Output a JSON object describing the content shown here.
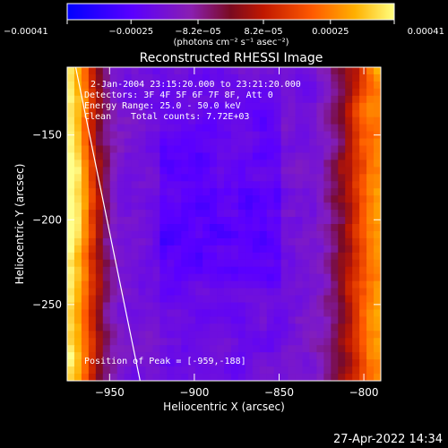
{
  "chart_data": {
    "type": "heatmap",
    "title": "Reconstructed RHESSI Image",
    "xlabel": "Heliocentric X (arcsec)",
    "ylabel": "Heliocentric Y (arcsec)",
    "xlim": [
      -975,
      -790
    ],
    "ylim": [
      -295,
      -110
    ],
    "x_ticks": [
      {
        "value": -950,
        "label": "−950"
      },
      {
        "value": -900,
        "label": "−900"
      },
      {
        "value": -850,
        "label": "−850"
      },
      {
        "value": -800,
        "label": "−800"
      }
    ],
    "y_ticks": [
      {
        "value": -150,
        "label": "−150"
      },
      {
        "value": -200,
        "label": "−200"
      },
      {
        "value": -250,
        "label": "−250"
      }
    ],
    "colorbar": {
      "min": -0.00041,
      "max": 0.00041,
      "ticks": [
        {
          "value": -0.00041,
          "label": "−0.00041"
        },
        {
          "value": -0.00025,
          "label": "−0.00025"
        },
        {
          "value": -8.2e-05,
          "label": "−8.2e−05"
        },
        {
          "value": 8.2e-05,
          "label": "8.2e−05"
        },
        {
          "value": 0.00025,
          "label": "0.00025"
        },
        {
          "value": 0.00041,
          "label": "0.00041"
        }
      ],
      "unit_label": "(photons cm⁻² s⁻¹ asec⁻²)",
      "colors": [
        "#0000ff",
        "#5a00ff",
        "#8a1fb0",
        "#7a0a20",
        "#c01800",
        "#ff5a00",
        "#ffb000",
        "#ffff80"
      ]
    },
    "limb_line": {
      "x1": -970,
      "y1": -110,
      "x2": -932,
      "y2": -295
    },
    "grid": false,
    "legend": "none"
  },
  "annotations": {
    "time_range": "2-Jan-2004 23:15:20.000 to 23:21:20.000",
    "detectors": "Detectors: 3F 4F 5F 6F 7F 8F, Att 0",
    "energy": "Energy Range: 25.0 - 50.0 keV",
    "method": "Clean",
    "counts": "Total counts: 7.72E+03",
    "peak": "Position of Peak = [-959,-188]"
  },
  "footer": {
    "timestamp": "27-Apr-2022 14:34"
  }
}
